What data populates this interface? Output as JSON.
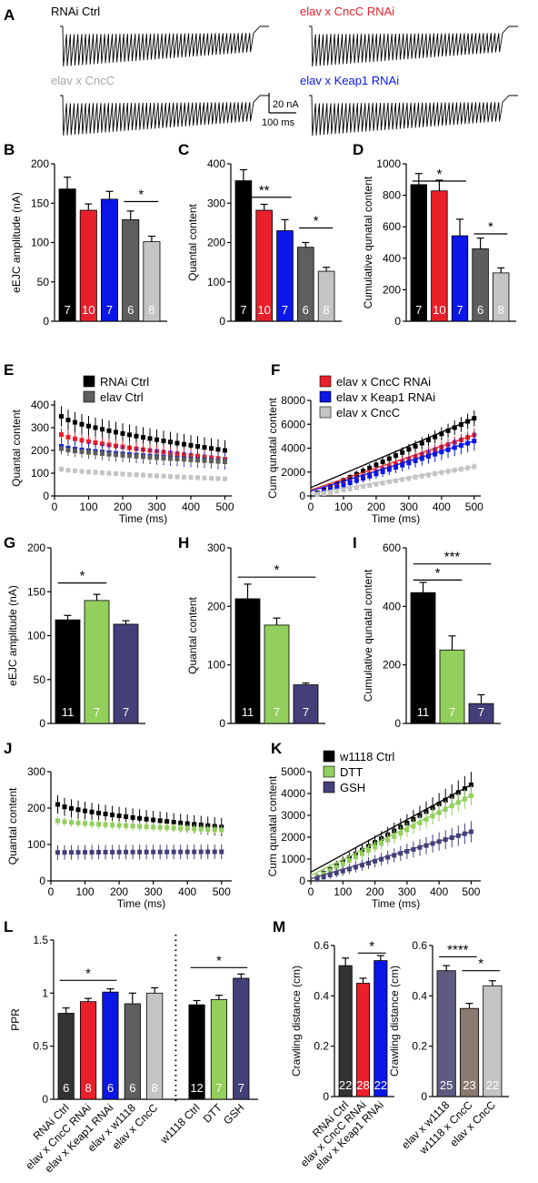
{
  "panel_letters": [
    "A",
    "B",
    "C",
    "D",
    "E",
    "F",
    "G",
    "H",
    "I",
    "J",
    "K",
    "L",
    "M"
  ],
  "colors": {
    "black": "#000000",
    "red": "#e8202a",
    "blue": "#0a16e6",
    "darkgray": "#5e5e5e",
    "lightgray": "#c4c4c4",
    "green": "#92cf5c",
    "purple": "#433f78",
    "taupe": "#8a7a6e",
    "slate": "#5f5b80"
  },
  "panelA": {
    "traces": [
      {
        "label": "RNAi Ctrl",
        "color": "#000000"
      },
      {
        "label": "elav x CncC RNAi",
        "color": "#e8202a"
      },
      {
        "label": "elav x CncC",
        "color": "#a8a8a8"
      },
      {
        "label": "elav x Keap1 RNAi",
        "color": "#0a16e6"
      }
    ],
    "scalebar": {
      "amp_label": "20 nA",
      "time_label": "100 ms"
    }
  },
  "chart_data": [
    {
      "panel": "B",
      "type": "bar",
      "ylabel": "eEJC amplitude (nA)",
      "ylim": [
        0,
        200
      ],
      "yticks": [
        0,
        50,
        100,
        150,
        200
      ],
      "categories": [
        "RNAi Ctrl",
        "elav x CncC RNAi",
        "elav x Keap1 RNAi",
        "elav x w1118",
        "elav x CncC"
      ],
      "values": [
        168,
        141,
        155,
        129,
        101
      ],
      "errors": [
        15,
        8,
        10,
        11,
        7
      ],
      "n": [
        "7",
        "10",
        "7",
        "6",
        "8"
      ],
      "colors": [
        "#000000",
        "#e8202a",
        "#0a16e6",
        "#5e5e5e",
        "#c4c4c4"
      ],
      "sig": [
        {
          "a": 3,
          "b": 4,
          "y": 152,
          "label": "*"
        }
      ]
    },
    {
      "panel": "C",
      "type": "bar",
      "ylabel": "Quantal content",
      "ylim": [
        0,
        400
      ],
      "yticks": [
        0,
        100,
        200,
        300,
        400
      ],
      "categories": [
        "RNAi Ctrl",
        "elav x CncC RNAi",
        "elav x Keap1 RNAi",
        "elav x w1118",
        "elav x CncC"
      ],
      "values": [
        357,
        282,
        230,
        188,
        127
      ],
      "errors": [
        28,
        15,
        28,
        12,
        10
      ],
      "n": [
        "7",
        "10",
        "7",
        "6",
        "8"
      ],
      "colors": [
        "#000000",
        "#e8202a",
        "#0a16e6",
        "#5e5e5e",
        "#c4c4c4"
      ],
      "sig": [
        {
          "a": 0,
          "b": 2,
          "y": 315,
          "label": "**"
        },
        {
          "a": 3,
          "b": 4,
          "y": 237,
          "label": "*"
        }
      ]
    },
    {
      "panel": "D",
      "type": "bar",
      "ylabel": "Cumulative qunatal content",
      "ylim": [
        0,
        1000
      ],
      "yticks": [
        0,
        200,
        400,
        600,
        800,
        1000
      ],
      "categories": [
        "RNAi Ctrl",
        "elav x CncC RNAi",
        "elav x Keap1 RNAi",
        "elav x w1118",
        "elav x CncC"
      ],
      "values": [
        868,
        828,
        543,
        460,
        307
      ],
      "errors": [
        70,
        68,
        105,
        68,
        32
      ],
      "n": [
        "7",
        "10",
        "7",
        "6",
        "8"
      ],
      "colors": [
        "#000000",
        "#e8202a",
        "#0a16e6",
        "#5e5e5e",
        "#c4c4c4"
      ],
      "sig": [
        {
          "a": 0,
          "b": 2,
          "y": 890,
          "label": "*"
        },
        {
          "a": 3,
          "b": 4,
          "y": 555,
          "label": "*"
        }
      ]
    },
    {
      "panel": "E",
      "type": "scatter",
      "xlabel": "Time (ms)",
      "ylabel": "Quantal content",
      "xlim": [
        0,
        520
      ],
      "xticks": [
        0,
        100,
        200,
        300,
        400,
        500
      ],
      "ylim": [
        0,
        420
      ],
      "yticks": [
        0,
        100,
        200,
        300,
        400
      ],
      "legend": [
        "RNAi Ctrl",
        "elav Ctrl"
      ],
      "legend_colors": [
        "#000000",
        "#5e5e5e"
      ],
      "series": [
        {
          "name": "RNAi Ctrl",
          "color": "#000000",
          "start": 350,
          "end": 200,
          "err": 45
        },
        {
          "name": "elav x CncC RNAi",
          "color": "#e8202a",
          "start": 270,
          "end": 162,
          "err": 28
        },
        {
          "name": "elav x Keap1 RNAi",
          "color": "#0a16e6",
          "start": 218,
          "end": 152,
          "err": 35
        },
        {
          "name": "elav x w1118",
          "color": "#5e5e5e",
          "start": 208,
          "end": 150,
          "err": 25
        },
        {
          "name": "elav x CncC",
          "color": "#c4c4c4",
          "start": 118,
          "end": 75,
          "err": 12
        }
      ]
    },
    {
      "panel": "F",
      "type": "scatter",
      "xlabel": "Time (ms)",
      "ylabel": "Cum qunatal content",
      "xlim": [
        0,
        520
      ],
      "xticks": [
        0,
        100,
        200,
        300,
        400,
        500
      ],
      "ylim": [
        0,
        8000
      ],
      "yticks": [
        0,
        2000,
        4000,
        6000,
        8000
      ],
      "legend": [
        "elav x CncC RNAi",
        "elav x Keap1 RNAi",
        "elav x CncC"
      ],
      "legend_colors": [
        "#e8202a",
        "#0a16e6",
        "#c4c4c4"
      ],
      "series": [
        {
          "name": "RNAi Ctrl",
          "color": "#000000",
          "end": 6500,
          "intercept": 700,
          "err_frac": 0.08
        },
        {
          "name": "elav x CncC RNAi",
          "color": "#e8202a",
          "end": 5100,
          "intercept": 500,
          "err_frac": 0.08
        },
        {
          "name": "elav x Keap1 RNAi",
          "color": "#0a16e6",
          "end": 4600,
          "intercept": 400,
          "err_frac": 0.14
        },
        {
          "name": "elav x CncC",
          "color": "#c4c4c4",
          "end": 2450,
          "intercept": 200,
          "err_frac": 0.06
        }
      ]
    },
    {
      "panel": "G",
      "type": "bar",
      "ylabel": "eEJC amplitude (nA)",
      "ylim": [
        0,
        200
      ],
      "yticks": [
        0,
        50,
        100,
        150,
        200
      ],
      "categories": [
        "w1118 Ctrl",
        "DTT",
        "GSH"
      ],
      "values": [
        118,
        140,
        113
      ],
      "errors": [
        5,
        7,
        4
      ],
      "n": [
        "11",
        "7",
        "7"
      ],
      "colors": [
        "#000000",
        "#92cf5c",
        "#433f78"
      ],
      "sig": [
        {
          "a": 0,
          "b": 1,
          "y": 160,
          "label": "*"
        }
      ]
    },
    {
      "panel": "H",
      "type": "bar",
      "ylabel": "Quantal content",
      "ylim": [
        0,
        300
      ],
      "yticks": [
        0,
        100,
        200,
        300
      ],
      "categories": [
        "w1118 Ctrl",
        "DTT",
        "GSH"
      ],
      "values": [
        213,
        168,
        66
      ],
      "errors": [
        25,
        12,
        3
      ],
      "n": [
        "11",
        "7",
        "7"
      ],
      "colors": [
        "#000000",
        "#92cf5c",
        "#433f78"
      ],
      "sig": [
        {
          "a": 0,
          "b": 2,
          "y": 250,
          "label": "*"
        }
      ]
    },
    {
      "panel": "I",
      "type": "bar",
      "ylabel": "Cumulative qunatal content",
      "ylim": [
        0,
        600
      ],
      "yticks": [
        0,
        200,
        400,
        600
      ],
      "categories": [
        "w1118 Ctrl",
        "DTT",
        "GSH"
      ],
      "values": [
        447,
        251,
        68
      ],
      "errors": [
        35,
        48,
        30
      ],
      "n": [
        "11",
        "7",
        "7"
      ],
      "colors": [
        "#000000",
        "#92cf5c",
        "#433f78"
      ],
      "sig": [
        {
          "a": 0,
          "b": 1,
          "y": 490,
          "label": "*"
        },
        {
          "a": 0,
          "b": 2,
          "y": 545,
          "label": "***"
        }
      ]
    },
    {
      "panel": "J",
      "type": "scatter",
      "xlabel": "Time (ms)",
      "ylabel": "Quantal content",
      "xlim": [
        0,
        530
      ],
      "xticks": [
        0,
        100,
        200,
        300,
        400,
        500
      ],
      "ylim": [
        0,
        300
      ],
      "yticks": [
        0,
        100,
        200,
        300
      ],
      "series": [
        {
          "name": "w1118 Ctrl",
          "color": "#000000",
          "start": 210,
          "end": 148,
          "err": 25
        },
        {
          "name": "DTT",
          "color": "#92cf5c",
          "start": 165,
          "end": 140,
          "err": 12
        },
        {
          "name": "GSH",
          "color": "#433f78",
          "start": 78,
          "end": 80,
          "err": 20
        }
      ]
    },
    {
      "panel": "K",
      "type": "scatter",
      "xlabel": "Time (ms)",
      "ylabel": "Cum qunatal content",
      "xlim": [
        0,
        530
      ],
      "xticks": [
        0,
        100,
        200,
        300,
        400,
        500
      ],
      "ylim": [
        0,
        5000
      ],
      "yticks": [
        0,
        1000,
        2000,
        3000,
        4000,
        5000
      ],
      "legend": [
        "w1118 Ctrl",
        "DTT",
        "GSH"
      ],
      "legend_colors": [
        "#000000",
        "#92cf5c",
        "#433f78"
      ],
      "series": [
        {
          "name": "w1118 Ctrl",
          "color": "#000000",
          "end": 4400,
          "intercept": 400,
          "err_frac": 0.1
        },
        {
          "name": "DTT",
          "color": "#92cf5c",
          "end": 3900,
          "intercept": 250,
          "err_frac": 0.08
        },
        {
          "name": "GSH",
          "color": "#433f78",
          "end": 2250,
          "intercept": 100,
          "err_frac": 0.15
        }
      ]
    },
    {
      "panel": "L",
      "type": "bar",
      "ylabel": "PPR",
      "ylim": [
        0,
        1.5
      ],
      "yticks": [
        0,
        0.5,
        1.0,
        1.5
      ],
      "categories": [
        "RNAi Ctrl",
        "elav x CncC RNAi",
        "elav x Keap1 RNAi",
        "elav x w1118",
        "elav x CncC",
        "w1118 Ctrl",
        "DTT",
        "GSH"
      ],
      "values": [
        0.81,
        0.92,
        1.01,
        0.9,
        1.0,
        0.89,
        0.94,
        1.14
      ],
      "errors": [
        0.05,
        0.03,
        0.03,
        0.1,
        0.05,
        0.04,
        0.04,
        0.04
      ],
      "n": [
        "6",
        "8",
        "6",
        "6",
        "8",
        "12",
        "7",
        "7"
      ],
      "colors": [
        "#333333",
        "#e8202a",
        "#0a16e6",
        "#5e5e5e",
        "#c4c4c4",
        "#000000",
        "#92cf5c",
        "#433f78"
      ],
      "sig": [
        {
          "a": 0,
          "b": 2,
          "y": 1.12,
          "label": "*"
        },
        {
          "a": 5,
          "b": 7,
          "y": 1.24,
          "label": "*"
        }
      ]
    },
    {
      "panel": "M1",
      "type": "bar",
      "ylabel": "Crawling distance (cm)",
      "ylim": [
        0,
        0.6
      ],
      "yticks": [
        0.0,
        0.2,
        0.4,
        0.6
      ],
      "categories": [
        "RNAi Ctrl",
        "elav x CncC RNAi",
        "elav x Keap1 RNAi"
      ],
      "values": [
        0.52,
        0.45,
        0.54
      ],
      "errors": [
        0.03,
        0.02,
        0.02
      ],
      "n": [
        "22",
        "28",
        "22"
      ],
      "colors": [
        "#333333",
        "#e8202a",
        "#0a16e6"
      ],
      "sig": [
        {
          "a": 1,
          "b": 2,
          "y": 0.57,
          "label": "*"
        }
      ]
    },
    {
      "panel": "M2",
      "type": "bar",
      "ylabel": "Crawling distance (cm)",
      "ylim": [
        0,
        0.6
      ],
      "yticks": [
        0.0,
        0.2,
        0.4,
        0.6
      ],
      "categories": [
        "elav x w1118",
        "w1118 x CncC",
        "elav x CncC"
      ],
      "values": [
        0.5,
        0.35,
        0.44
      ],
      "errors": [
        0.02,
        0.02,
        0.02
      ],
      "n": [
        "25",
        "23",
        "22"
      ],
      "colors": [
        "#5f5b80",
        "#8a7a6e",
        "#c4c4c4"
      ],
      "sig": [
        {
          "a": 0,
          "b": 1,
          "y": 0.555,
          "label": "****"
        },
        {
          "a": 1,
          "b": 2,
          "y": 0.5,
          "label": "*"
        }
      ]
    }
  ]
}
